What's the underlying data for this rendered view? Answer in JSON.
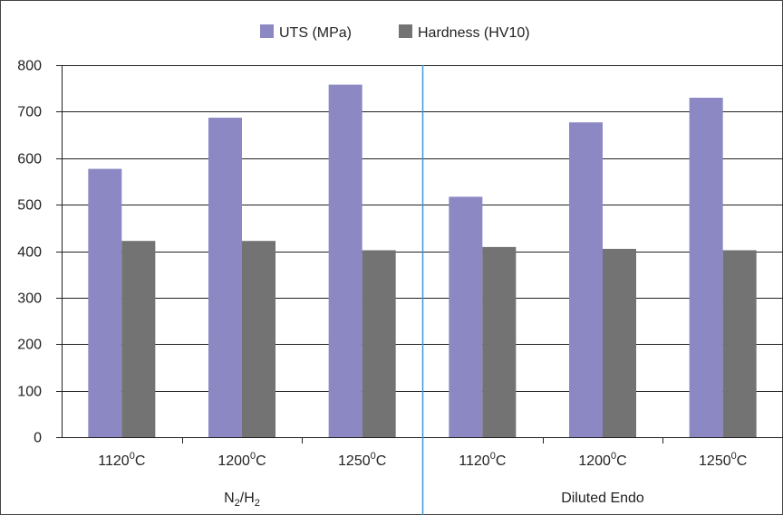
{
  "chart_data": {
    "type": "bar",
    "title": "",
    "xlabel": "",
    "ylabel": "",
    "ylim": [
      0,
      800
    ],
    "yticks": [
      0,
      100,
      200,
      300,
      400,
      500,
      600,
      700,
      800
    ],
    "grid": true,
    "legend_position": "top-center",
    "categories": [
      {
        "pre": "1120",
        "sup": "0",
        "post": "C"
      },
      {
        "pre": "1200",
        "sup": "0",
        "post": "C"
      },
      {
        "pre": "1250",
        "sup": "0",
        "post": "C"
      },
      {
        "pre": "1120",
        "sup": "0",
        "post": "C"
      },
      {
        "pre": "1200",
        "sup": "0",
        "post": "C"
      },
      {
        "pre": "1250",
        "sup": "0",
        "post": "C"
      }
    ],
    "groups": [
      {
        "label_parts": [
          {
            "t": "N"
          },
          {
            "t": "2",
            "sub": true
          },
          {
            "t": "/H"
          },
          {
            "t": "2",
            "sub": true
          }
        ],
        "category_count": 3
      },
      {
        "label_parts": [
          {
            "t": "Diluted Endo"
          }
        ],
        "category_count": 3
      }
    ],
    "series": [
      {
        "name": "UTS (MPa)",
        "color": "#8b88c3",
        "values": [
          577,
          687,
          758,
          517,
          677,
          730
        ]
      },
      {
        "name": "Hardness (HV10)",
        "color": "#737373",
        "values": [
          422,
          422,
          402,
          409,
          405,
          402
        ]
      }
    ],
    "divider_color": "#3a9ad9"
  }
}
